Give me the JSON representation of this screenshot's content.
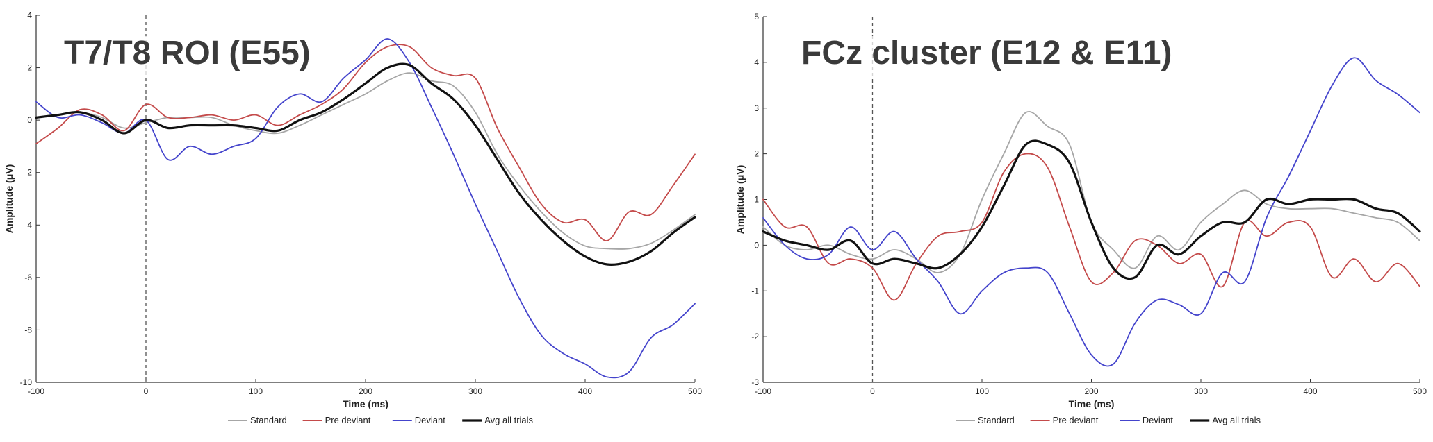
{
  "chart_data": [
    {
      "type": "line",
      "title": "T7/T8 ROI (E55)",
      "xlabel": "Time (ms)",
      "ylabel": "Amplitude (μV)",
      "xlim": [
        -100,
        500
      ],
      "ylim": [
        -10,
        4
      ],
      "xticks": [
        -100,
        0,
        100,
        200,
        300,
        400,
        500
      ],
      "yticks": [
        -10,
        -8,
        -6,
        -4,
        -2,
        0,
        2,
        4
      ],
      "vline_at": 0,
      "legend_position": "bottom-center",
      "series": [
        {
          "name": "Standard",
          "color": "#a6a6a6",
          "x": [
            -100,
            -80,
            -60,
            -40,
            -20,
            0,
            20,
            40,
            60,
            80,
            100,
            120,
            140,
            160,
            180,
            200,
            220,
            240,
            260,
            280,
            300,
            320,
            340,
            360,
            380,
            400,
            420,
            440,
            460,
            480,
            500
          ],
          "y": [
            0.1,
            0.2,
            0.3,
            0.1,
            -0.3,
            -0.1,
            0.1,
            0.1,
            0.1,
            -0.2,
            -0.4,
            -0.5,
            -0.2,
            0.2,
            0.6,
            1.0,
            1.5,
            1.8,
            1.5,
            1.3,
            0.3,
            -1.3,
            -2.5,
            -3.5,
            -4.3,
            -4.8,
            -4.9,
            -4.9,
            -4.7,
            -4.2,
            -3.6
          ]
        },
        {
          "name": "Pre deviant",
          "color": "#c44a4a",
          "x": [
            -100,
            -80,
            -60,
            -40,
            -20,
            0,
            20,
            40,
            60,
            80,
            100,
            120,
            140,
            160,
            180,
            200,
            220,
            240,
            260,
            280,
            300,
            320,
            340,
            360,
            380,
            400,
            420,
            440,
            460,
            480,
            500
          ],
          "y": [
            -0.9,
            -0.3,
            0.4,
            0.2,
            -0.4,
            0.6,
            0.1,
            0.1,
            0.2,
            0.0,
            0.2,
            -0.2,
            0.2,
            0.6,
            1.2,
            2.2,
            2.8,
            2.8,
            2.0,
            1.7,
            1.6,
            -0.3,
            -1.8,
            -3.2,
            -3.9,
            -3.8,
            -4.6,
            -3.5,
            -3.6,
            -2.5,
            -1.3
          ]
        },
        {
          "name": "Deviant",
          "color": "#4444cc",
          "x": [
            -100,
            -80,
            -60,
            -40,
            -20,
            0,
            20,
            40,
            60,
            80,
            100,
            120,
            140,
            160,
            180,
            200,
            220,
            240,
            260,
            280,
            300,
            320,
            340,
            360,
            380,
            400,
            420,
            440,
            460,
            480,
            500
          ],
          "y": [
            0.7,
            0.1,
            0.2,
            -0.1,
            -0.5,
            0.0,
            -1.5,
            -1.0,
            -1.3,
            -1.0,
            -0.7,
            0.5,
            1.0,
            0.7,
            1.6,
            2.3,
            3.1,
            2.2,
            0.5,
            -1.3,
            -3.2,
            -5.0,
            -6.8,
            -8.2,
            -8.9,
            -9.3,
            -9.8,
            -9.6,
            -8.3,
            -7.8,
            -7.0
          ]
        },
        {
          "name": "Avg all trials",
          "color": "#111111",
          "x": [
            -100,
            -80,
            -60,
            -40,
            -20,
            0,
            20,
            40,
            60,
            80,
            100,
            120,
            140,
            160,
            180,
            200,
            220,
            240,
            260,
            280,
            300,
            320,
            340,
            360,
            380,
            400,
            420,
            440,
            460,
            480,
            500
          ],
          "y": [
            0.1,
            0.2,
            0.3,
            0.0,
            -0.5,
            0.0,
            -0.3,
            -0.2,
            -0.2,
            -0.2,
            -0.3,
            -0.4,
            0.0,
            0.3,
            0.8,
            1.4,
            2.0,
            2.1,
            1.4,
            0.8,
            -0.2,
            -1.5,
            -2.8,
            -3.8,
            -4.6,
            -5.2,
            -5.5,
            -5.4,
            -5.0,
            -4.3,
            -3.7
          ]
        }
      ]
    },
    {
      "type": "line",
      "title": "FCz cluster (E12 & E11)",
      "xlabel": "Time (ms)",
      "ylabel": "Amplitude (μV)",
      "xlim": [
        -100,
        500
      ],
      "ylim": [
        -3,
        5
      ],
      "xticks": [
        -100,
        0,
        100,
        200,
        300,
        400,
        500
      ],
      "yticks": [
        -3,
        -2,
        -1,
        0,
        1,
        2,
        3,
        4,
        5
      ],
      "vline_at": 0,
      "legend_position": "bottom-center",
      "series": [
        {
          "name": "Standard",
          "color": "#a6a6a6",
          "x": [
            -100,
            -80,
            -60,
            -40,
            -20,
            0,
            20,
            40,
            60,
            80,
            100,
            120,
            140,
            160,
            180,
            200,
            220,
            240,
            260,
            280,
            300,
            320,
            340,
            360,
            380,
            400,
            420,
            440,
            460,
            480,
            500
          ],
          "y": [
            0.4,
            0.0,
            -0.1,
            0.0,
            -0.2,
            -0.3,
            -0.1,
            -0.3,
            -0.6,
            -0.2,
            1.0,
            2.0,
            2.9,
            2.6,
            2.2,
            0.5,
            -0.1,
            -0.5,
            0.2,
            -0.1,
            0.5,
            0.9,
            1.2,
            0.9,
            0.8,
            0.8,
            0.8,
            0.7,
            0.6,
            0.5,
            0.1
          ]
        },
        {
          "name": "Pre deviant",
          "color": "#c44a4a",
          "x": [
            -100,
            -80,
            -60,
            -40,
            -20,
            0,
            20,
            40,
            60,
            80,
            100,
            120,
            140,
            160,
            180,
            200,
            220,
            240,
            260,
            280,
            300,
            320,
            340,
            360,
            380,
            400,
            420,
            440,
            460,
            480,
            500
          ],
          "y": [
            1.0,
            0.4,
            0.4,
            -0.4,
            -0.3,
            -0.5,
            -1.2,
            -0.4,
            0.2,
            0.3,
            0.5,
            1.6,
            2.0,
            1.7,
            0.4,
            -0.8,
            -0.6,
            0.1,
            0.0,
            -0.4,
            -0.2,
            -0.9,
            0.5,
            0.2,
            0.5,
            0.4,
            -0.7,
            -0.3,
            -0.8,
            -0.4,
            -0.9
          ]
        },
        {
          "name": "Deviant",
          "color": "#4444cc",
          "x": [
            -100,
            -80,
            -60,
            -40,
            -20,
            0,
            20,
            40,
            60,
            80,
            100,
            120,
            140,
            160,
            180,
            200,
            220,
            240,
            260,
            280,
            300,
            320,
            340,
            360,
            380,
            400,
            420,
            440,
            460,
            480,
            500
          ],
          "y": [
            0.6,
            0.0,
            -0.3,
            -0.2,
            0.4,
            -0.1,
            0.3,
            -0.3,
            -0.8,
            -1.5,
            -1.0,
            -0.6,
            -0.5,
            -0.6,
            -1.5,
            -2.4,
            -2.6,
            -1.7,
            -1.2,
            -1.3,
            -1.5,
            -0.6,
            -0.8,
            0.6,
            1.5,
            2.5,
            3.5,
            4.1,
            3.6,
            3.3,
            2.9
          ]
        },
        {
          "name": "Avg all trials",
          "color": "#111111",
          "x": [
            -100,
            -80,
            -60,
            -40,
            -20,
            0,
            20,
            40,
            60,
            80,
            100,
            120,
            140,
            160,
            180,
            200,
            220,
            240,
            260,
            280,
            300,
            320,
            340,
            360,
            380,
            400,
            420,
            440,
            460,
            480,
            500
          ],
          "y": [
            0.3,
            0.1,
            0.0,
            -0.1,
            0.1,
            -0.4,
            -0.3,
            -0.4,
            -0.5,
            -0.2,
            0.4,
            1.3,
            2.2,
            2.2,
            1.8,
            0.5,
            -0.5,
            -0.7,
            0.0,
            -0.2,
            0.2,
            0.5,
            0.5,
            1.0,
            0.9,
            1.0,
            1.0,
            1.0,
            0.8,
            0.7,
            0.3
          ]
        }
      ]
    }
  ]
}
